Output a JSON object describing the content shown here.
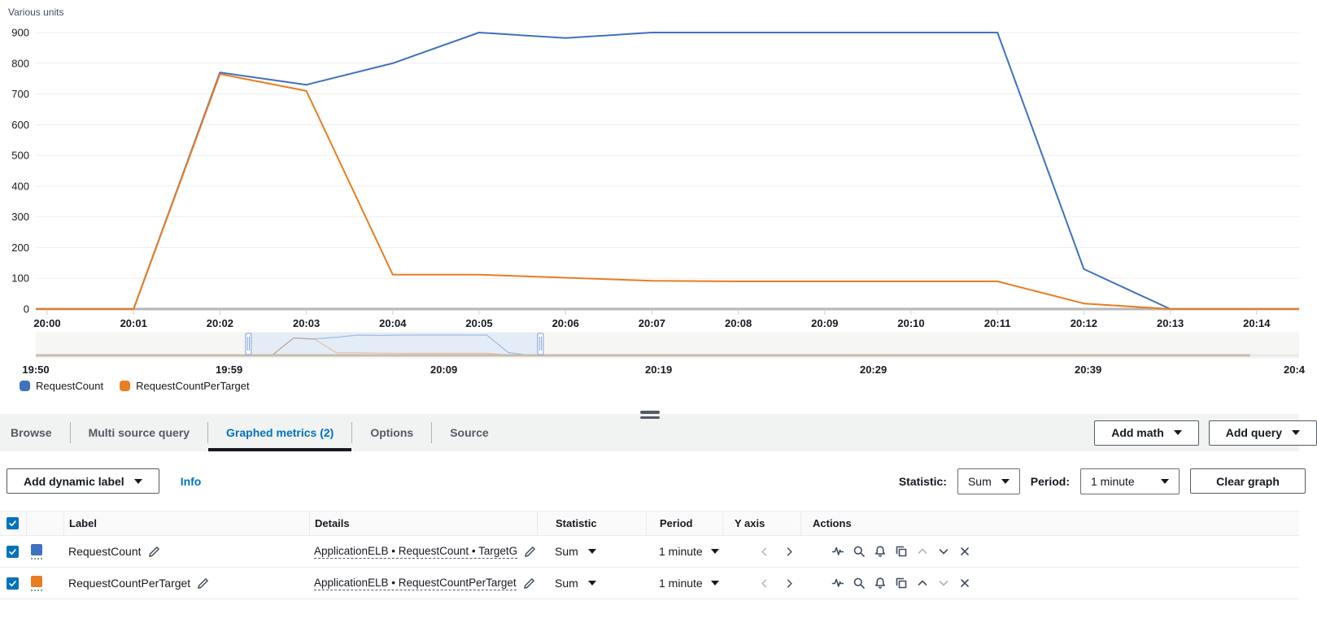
{
  "chart": {
    "unit_label": "Various units",
    "accent_blue": "#3E72BE",
    "accent_orange": "#E87D22"
  },
  "chart_data": {
    "type": "line",
    "title": "",
    "ylabel": "Various units",
    "ylim": [
      0,
      900
    ],
    "y_ticks": [
      0,
      100,
      200,
      300,
      400,
      500,
      600,
      700,
      800,
      900
    ],
    "x": [
      "20:00",
      "20:01",
      "20:02",
      "20:03",
      "20:04",
      "20:05",
      "20:06",
      "20:07",
      "20:08",
      "20:09",
      "20:10",
      "20:11",
      "20:12",
      "20:13",
      "20:14"
    ],
    "series": [
      {
        "name": "RequestCount",
        "color": "#3E72BE",
        "values": [
          0,
          0,
          770,
          730,
          800,
          900,
          882,
          900,
          900,
          900,
          900,
          900,
          130,
          0,
          0
        ]
      },
      {
        "name": "RequestCountPerTarget",
        "color": "#E87D22",
        "values": [
          0,
          0,
          765,
          710,
          112,
          112,
          102,
          92,
          90,
          90,
          90,
          90,
          18,
          0,
          0
        ]
      }
    ],
    "legend_position": "bottom",
    "grid": true
  },
  "minimap": {
    "labels": [
      {
        "text": "19:50",
        "min": 0
      },
      {
        "text": "19:59",
        "min": 9
      },
      {
        "text": "20:09",
        "min": 19
      },
      {
        "text": "20:19",
        "min": 29
      },
      {
        "text": "20:29",
        "min": 39
      },
      {
        "text": "20:39",
        "min": 49
      },
      {
        "text": "20:4",
        "min": 58.6
      }
    ],
    "selection": {
      "start_min": 9.9,
      "end_min": 23.5
    }
  },
  "legend": {
    "items": [
      {
        "label": "RequestCount",
        "color": "#3E72BE"
      },
      {
        "label": "RequestCountPerTarget",
        "color": "#E87D22"
      }
    ]
  },
  "tabs": {
    "items": [
      {
        "label": "Browse"
      },
      {
        "label": "Multi source query"
      },
      {
        "label": "Graphed metrics (2)"
      },
      {
        "label": "Options"
      },
      {
        "label": "Source"
      }
    ]
  },
  "header_buttons": {
    "add_math": "Add math",
    "add_query": "Add query"
  },
  "toolbar": {
    "add_dynamic_label": "Add dynamic label",
    "info": "Info",
    "statistic_label": "Statistic:",
    "statistic_value": "Sum",
    "period_label": "Period:",
    "period_value": "1 minute",
    "clear_graph": "Clear graph"
  },
  "table": {
    "headers": {
      "label": "Label",
      "details": "Details",
      "statistic": "Statistic",
      "period": "Period",
      "y_axis": "Y axis",
      "actions": "Actions"
    },
    "rows": [
      {
        "label": "RequestCount",
        "details": "ApplicationELB • RequestCount • TargetG",
        "statistic": "Sum",
        "period": "1 minute",
        "color": "#3E72BE"
      },
      {
        "label": "RequestCountPerTarget",
        "details": "ApplicationELB • RequestCountPerTarget",
        "statistic": "Sum",
        "period": "1 minute",
        "color": "#E87D22"
      }
    ]
  }
}
